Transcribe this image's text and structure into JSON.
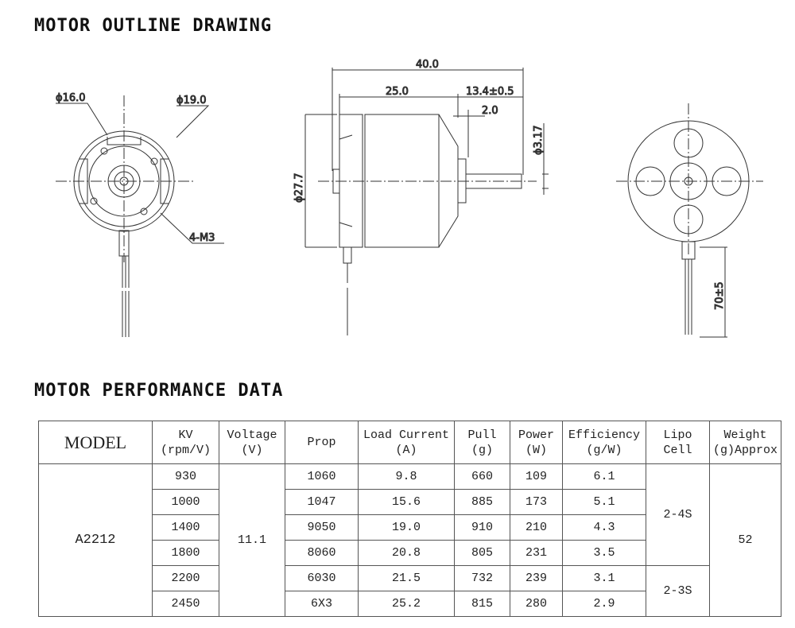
{
  "outline": {
    "title": "MOTOR OUTLINE DRAWING",
    "front": {
      "d1": "ϕ16.0",
      "d2": "ϕ19.0",
      "holes": "4-M3"
    },
    "side": {
      "length": "40.0",
      "body": "25.0",
      "shaft": "13.4±0.5",
      "boss": "2.0",
      "diameter": "ϕ27.7",
      "shaft_diameter": "ϕ3.17"
    },
    "rear": {
      "lead_length": "70±5"
    }
  },
  "performance": {
    "title": "MOTOR PERFORMANCE DATA",
    "headers": {
      "model": "MODEL",
      "kv": [
        "KV",
        "(rpm/V)"
      ],
      "voltage": [
        "Voltage",
        "(V)"
      ],
      "prop": "Prop",
      "current": [
        "Load Current",
        "(A)"
      ],
      "pull": [
        "Pull",
        "(g)"
      ],
      "power": [
        "Power",
        "(W)"
      ],
      "efficiency": [
        "Efficiency",
        "(g/W)"
      ],
      "lipo": [
        "Lipo",
        "Cell"
      ],
      "weight": [
        "Weight",
        "(g)Approx"
      ]
    },
    "model": "A2212",
    "voltage": "11.1",
    "weight": "52",
    "lipo": [
      "2-4S",
      "2-3S"
    ],
    "rows": [
      {
        "kv": "930",
        "prop": "1060",
        "current": "9.8",
        "pull": "660",
        "power": "109",
        "efficiency": "6.1"
      },
      {
        "kv": "1000",
        "prop": "1047",
        "current": "15.6",
        "pull": "885",
        "power": "173",
        "efficiency": "5.1"
      },
      {
        "kv": "1400",
        "prop": "9050",
        "current": "19.0",
        "pull": "910",
        "power": "210",
        "efficiency": "4.3"
      },
      {
        "kv": "1800",
        "prop": "8060",
        "current": "20.8",
        "pull": "805",
        "power": "231",
        "efficiency": "3.5"
      },
      {
        "kv": "2200",
        "prop": "6030",
        "current": "21.5",
        "pull": "732",
        "power": "239",
        "efficiency": "3.1"
      },
      {
        "kv": "2450",
        "prop": "6X3",
        "current": "25.2",
        "pull": "815",
        "power": "280",
        "efficiency": "2.9"
      }
    ]
  }
}
